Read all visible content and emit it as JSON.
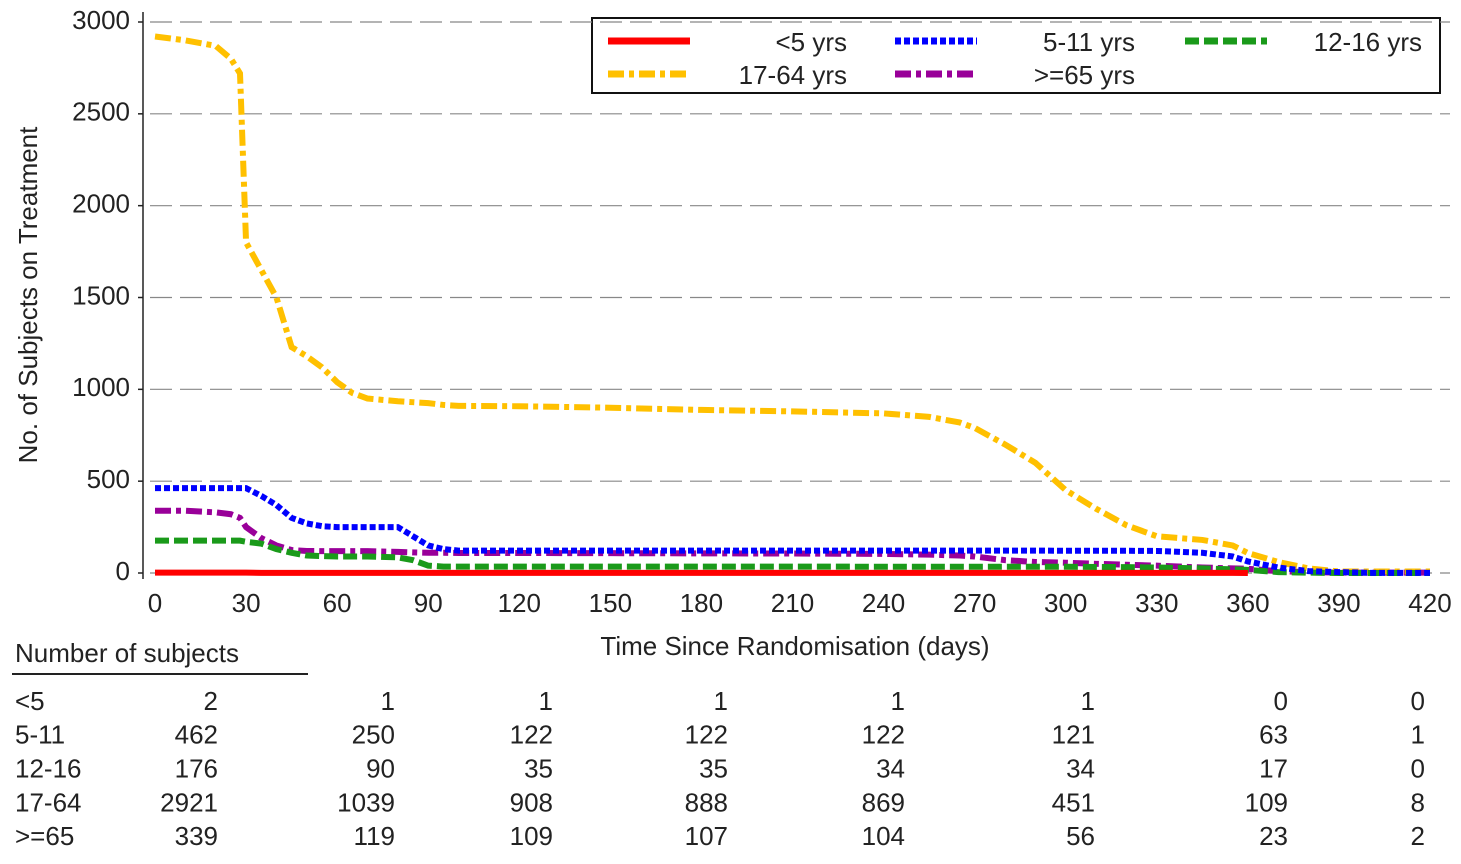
{
  "chart_data": {
    "type": "line",
    "ylabel": "No. of Subjects on Treatment",
    "xlabel": "Time Since Randomisation (days)",
    "x": [
      0,
      10,
      20,
      25,
      28,
      30,
      35,
      40,
      45,
      50,
      55,
      60,
      65,
      70,
      80,
      85,
      90,
      95,
      100,
      120,
      150,
      180,
      210,
      240,
      255,
      265,
      270,
      280,
      290,
      300,
      310,
      320,
      330,
      345,
      355,
      360,
      370,
      380,
      390,
      400,
      420
    ],
    "series": [
      {
        "name": "<5 yrs",
        "color": "#ff0000",
        "dash": "solid",
        "values": [
          2,
          2,
          2,
          2,
          2,
          2,
          1,
          1,
          1,
          1,
          1,
          1,
          1,
          1,
          1,
          1,
          1,
          1,
          1,
          1,
          1,
          1,
          1,
          1,
          1,
          1,
          1,
          1,
          1,
          1,
          1,
          1,
          1,
          1,
          1,
          0,
          null,
          null,
          null,
          null,
          null
        ]
      },
      {
        "name": "5-11 yrs",
        "color": "#0000ff",
        "dash": "dotted",
        "values": [
          462,
          462,
          462,
          462,
          462,
          462,
          420,
          370,
          300,
          270,
          255,
          250,
          250,
          250,
          250,
          200,
          150,
          130,
          122,
          122,
          122,
          122,
          122,
          122,
          122,
          122,
          122,
          122,
          122,
          121,
          121,
          121,
          120,
          110,
          90,
          63,
          30,
          10,
          5,
          1,
          1
        ]
      },
      {
        "name": "12-16 yrs",
        "color": "#1a9a1a",
        "dash": "dashed",
        "values": [
          176,
          176,
          176,
          176,
          176,
          170,
          160,
          130,
          110,
          95,
          92,
          90,
          90,
          90,
          85,
          70,
          40,
          35,
          35,
          35,
          35,
          35,
          35,
          34,
          34,
          34,
          34,
          34,
          34,
          34,
          33,
          32,
          30,
          25,
          20,
          17,
          5,
          2,
          0,
          0,
          0
        ]
      },
      {
        "name": "17-64 yrs",
        "color": "#ffc000",
        "dash": "dashdot",
        "values": [
          2921,
          2900,
          2870,
          2800,
          2720,
          1800,
          1650,
          1500,
          1230,
          1180,
          1120,
          1039,
          980,
          950,
          935,
          930,
          925,
          915,
          910,
          908,
          900,
          888,
          880,
          869,
          850,
          820,
          790,
          700,
          600,
          451,
          350,
          260,
          200,
          180,
          150,
          109,
          60,
          25,
          8,
          8,
          8
        ]
      },
      {
        "name": ">=65 yrs",
        "color": "#990099",
        "dash": "dashdot",
        "values": [
          339,
          339,
          330,
          320,
          300,
          250,
          190,
          150,
          125,
          120,
          119,
          119,
          119,
          119,
          115,
          112,
          110,
          110,
          109,
          109,
          108,
          107,
          106,
          104,
          100,
          95,
          90,
          70,
          60,
          56,
          50,
          45,
          40,
          30,
          25,
          23,
          10,
          5,
          2,
          2,
          2
        ]
      }
    ],
    "xlim": [
      0,
      420
    ],
    "xticks": [
      0,
      30,
      60,
      90,
      120,
      150,
      180,
      210,
      240,
      270,
      300,
      330,
      360,
      390,
      420
    ],
    "ylim": [
      0,
      3000
    ],
    "yticks": [
      0,
      500,
      1000,
      1500,
      2000,
      2500,
      3000
    ],
    "grid": true,
    "legend": "top-right"
  },
  "risk_table": {
    "title": "Number of subjects",
    "rows": [
      {
        "label": "<5",
        "values": [
          2,
          1,
          1,
          1,
          1,
          1,
          0,
          0
        ]
      },
      {
        "label": "5-11",
        "values": [
          462,
          250,
          122,
          122,
          122,
          121,
          63,
          1
        ]
      },
      {
        "label": "12-16",
        "values": [
          176,
          90,
          35,
          35,
          34,
          34,
          17,
          0
        ]
      },
      {
        "label": "17-64",
        "values": [
          2921,
          1039,
          908,
          888,
          869,
          451,
          109,
          8
        ]
      },
      {
        "label": ">=65",
        "values": [
          339,
          119,
          109,
          107,
          104,
          56,
          23,
          2
        ]
      }
    ]
  }
}
